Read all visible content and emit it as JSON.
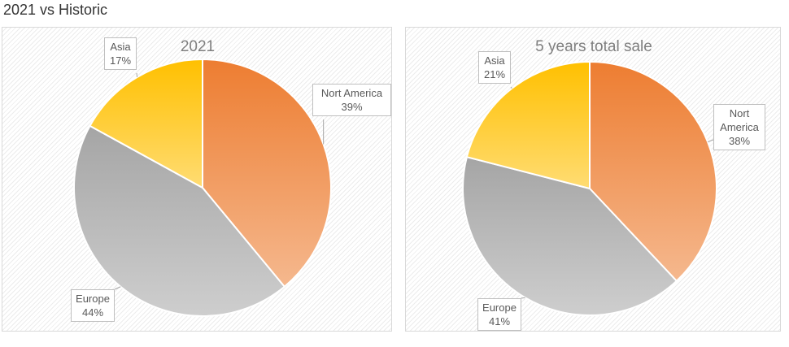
{
  "header": {
    "title": "2021 vs Historic"
  },
  "chart_data": [
    {
      "type": "pie",
      "title": "2021",
      "categories": [
        "Nort America",
        "Europe",
        "Asia"
      ],
      "values": [
        39,
        44,
        17
      ],
      "value_labels": [
        "39%",
        "44%",
        "17%"
      ],
      "colors": [
        "#ed7d31",
        "#a5a5a5",
        "#ffc000"
      ]
    },
    {
      "type": "pie",
      "title": "5 years total sale",
      "categories": [
        "Nort America",
        "Europe",
        "Asia"
      ],
      "values": [
        38,
        41,
        21
      ],
      "value_labels": [
        "38%",
        "41%",
        "21%"
      ],
      "colors": [
        "#ed7d31",
        "#a5a5a5",
        "#ffc000"
      ]
    }
  ]
}
